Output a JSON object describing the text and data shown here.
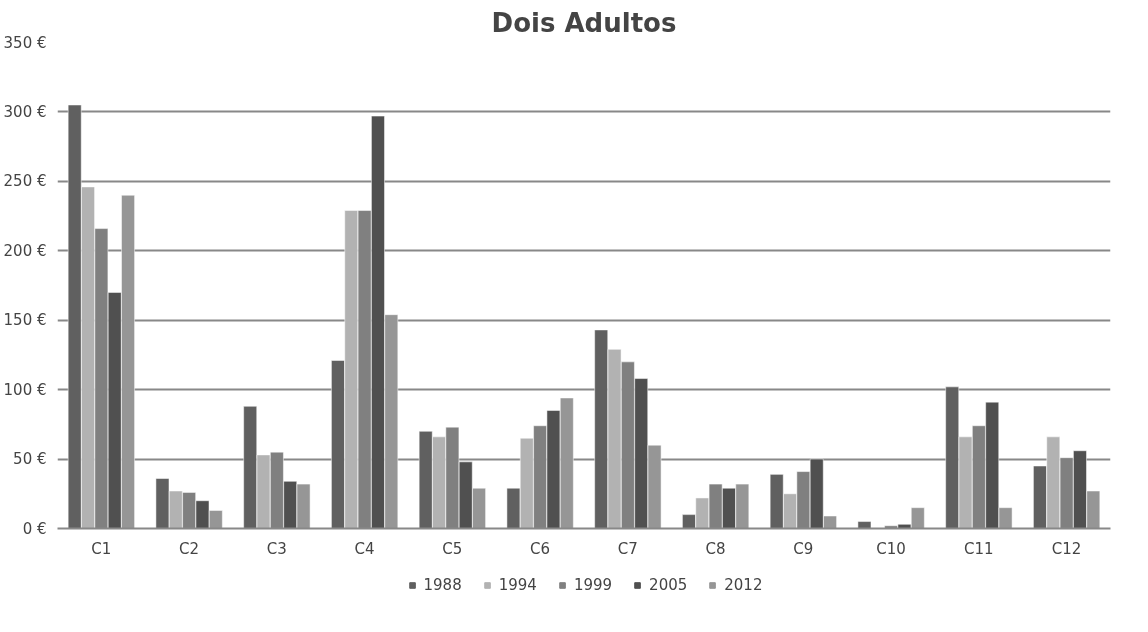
{
  "chart_data": {
    "type": "bar",
    "title": "Dois Adultos",
    "categories": [
      "C1",
      "C2",
      "C3",
      "C4",
      "C5",
      "C6",
      "C7",
      "C8",
      "C9",
      "C10",
      "C11",
      "C12"
    ],
    "series": [
      {
        "name": "1988",
        "color": "#606060",
        "values": [
          305,
          36,
          88,
          121,
          70,
          29,
          143,
          10,
          39,
          5,
          102,
          45
        ]
      },
      {
        "name": "1994",
        "color": "#b2b2b2",
        "values": [
          246,
          27,
          53,
          229,
          66,
          65,
          129,
          22,
          25,
          null,
          66,
          66
        ]
      },
      {
        "name": "1999",
        "color": "#808080",
        "values": [
          216,
          26,
          55,
          229,
          73,
          74,
          120,
          32,
          41,
          2,
          74,
          51
        ]
      },
      {
        "name": "2005",
        "color": "#505050",
        "values": [
          170,
          20,
          34,
          297,
          48,
          85,
          108,
          29,
          50,
          3,
          91,
          56
        ]
      },
      {
        "name": "2012",
        "color": "#969696",
        "values": [
          240,
          13,
          32,
          154,
          29,
          94,
          60,
          32,
          9,
          15,
          15,
          27
        ]
      }
    ],
    "ylim": [
      0,
      350
    ],
    "yticks": [
      {
        "value": 0,
        "label": "0 €"
      },
      {
        "value": 50,
        "label": "50 €"
      },
      {
        "value": 100,
        "label": "100 €"
      },
      {
        "value": 150,
        "label": "150 €"
      },
      {
        "value": 200,
        "label": "200 €"
      },
      {
        "value": 250,
        "label": "250 €"
      },
      {
        "value": 300,
        "label": "300 €"
      },
      {
        "value": 350,
        "label": "350 €"
      }
    ],
    "grid": "y",
    "legend": "bottom"
  }
}
